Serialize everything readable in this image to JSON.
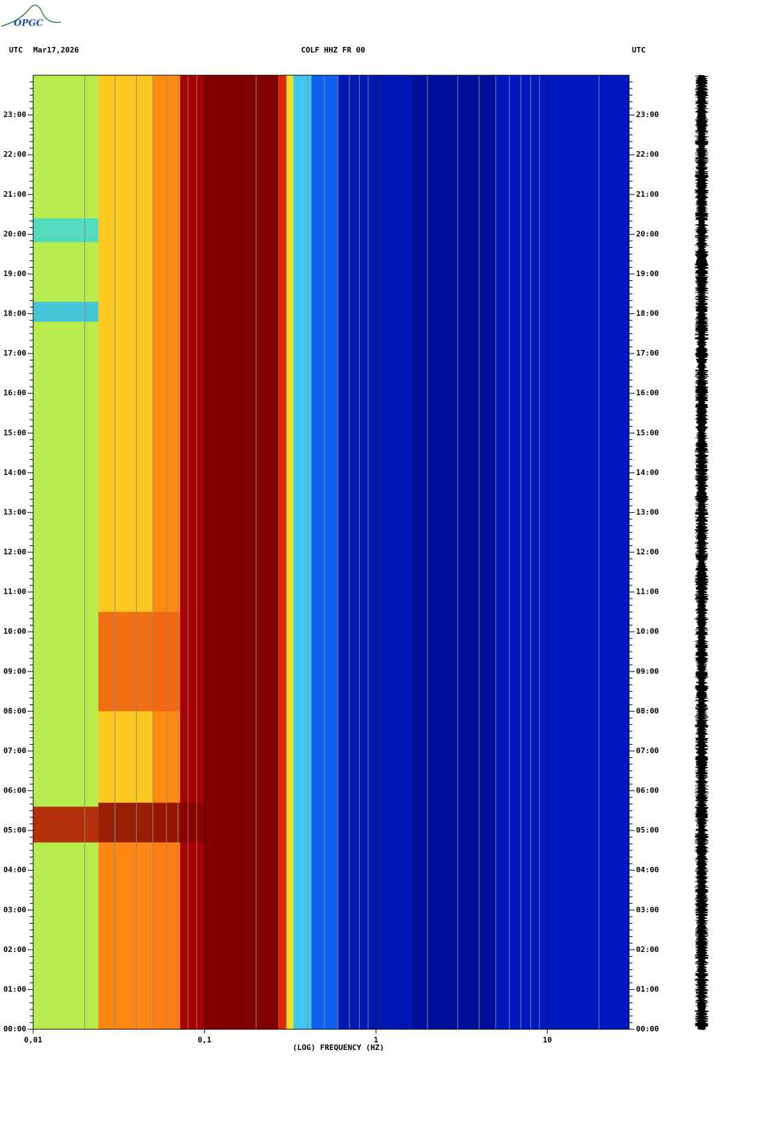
{
  "logo": "OPGC",
  "header": {
    "timezone_left": "UTC",
    "date": "Mar17,2026",
    "title": "COLF HHZ FR 00",
    "timezone_right": "UTC"
  },
  "chart_data": {
    "type": "spectrogram",
    "x_label": "(LOG) FREQUENCY (HZ)",
    "xlim": [
      0.01,
      30
    ],
    "x_log": true,
    "xticks": [
      {
        "value": 0.01,
        "label": "0,01"
      },
      {
        "value": 0.1,
        "label": "0,1"
      },
      1,
      10
    ],
    "ylim": [
      0,
      24
    ],
    "yticks": [
      {
        "value": 0,
        "label": "00:00"
      },
      {
        "value": 1,
        "label": "01:00"
      },
      {
        "value": 2,
        "label": "02:00"
      },
      {
        "value": 3,
        "label": "03:00"
      },
      {
        "value": 4,
        "label": "04:00"
      },
      {
        "value": 5,
        "label": "05:00"
      },
      {
        "value": 6,
        "label": "06:00"
      },
      {
        "value": 7,
        "label": "07:00"
      },
      {
        "value": 8,
        "label": "08:00"
      },
      {
        "value": 9,
        "label": "09:00"
      },
      {
        "value": 10,
        "label": "10:00"
      },
      {
        "value": 11,
        "label": "11:00"
      },
      {
        "value": 12,
        "label": "12:00"
      },
      {
        "value": 13,
        "label": "13:00"
      },
      {
        "value": 14,
        "label": "14:00"
      },
      {
        "value": 15,
        "label": "15:00"
      },
      {
        "value": 16,
        "label": "16:00"
      },
      {
        "value": 17,
        "label": "17:00"
      },
      {
        "value": 18,
        "label": "18:00"
      },
      {
        "value": 19,
        "label": "19:00"
      },
      {
        "value": 20,
        "label": "20:00"
      },
      {
        "value": 21,
        "label": "21:00"
      },
      {
        "value": 22,
        "label": "22:00"
      },
      {
        "value": 23,
        "label": "23:00"
      }
    ],
    "bands": [
      {
        "from": 0.01,
        "to": 0.024,
        "color": "#b8ec4c"
      },
      {
        "from": 0.024,
        "to": 0.05,
        "color": "#ffc81e"
      },
      {
        "from": 0.05,
        "to": 0.072,
        "color": "#ff8c10"
      },
      {
        "from": 0.072,
        "to": 0.1,
        "color": "#a80000"
      },
      {
        "from": 0.1,
        "to": 0.27,
        "color": "#820000"
      },
      {
        "from": 0.27,
        "to": 0.3,
        "color": "#e02800"
      },
      {
        "from": 0.3,
        "to": 0.33,
        "color": "#f4e020"
      },
      {
        "from": 0.33,
        "to": 0.42,
        "color": "#3cc8f0"
      },
      {
        "from": 0.42,
        "to": 0.6,
        "color": "#1060f0"
      },
      {
        "from": 0.6,
        "to": 1.6,
        "color": "#0018b4"
      },
      {
        "from": 1.6,
        "to": 5,
        "color": "#00109c"
      },
      {
        "from": 5,
        "to": 30,
        "color": "#0018c0"
      }
    ],
    "events": [
      {
        "start": 4.7,
        "end": 5.6,
        "from": 0.01,
        "to": 0.024,
        "color": "#b01000"
      },
      {
        "start": 4.7,
        "end": 5.7,
        "from": 0.024,
        "to": 0.1,
        "color": "#860000"
      },
      {
        "start": 0.0,
        "end": 4.7,
        "from": 0.024,
        "to": 0.072,
        "color": "#ff7a10"
      },
      {
        "start": 8.0,
        "end": 10.5,
        "from": 0.024,
        "to": 0.072,
        "color": "#f06010"
      },
      {
        "start": 17.8,
        "end": 18.3,
        "from": 0.01,
        "to": 0.024,
        "color": "#30c0f0"
      },
      {
        "start": 19.8,
        "end": 20.4,
        "from": 0.01,
        "to": 0.024,
        "color": "#40d8d0"
      }
    ]
  }
}
